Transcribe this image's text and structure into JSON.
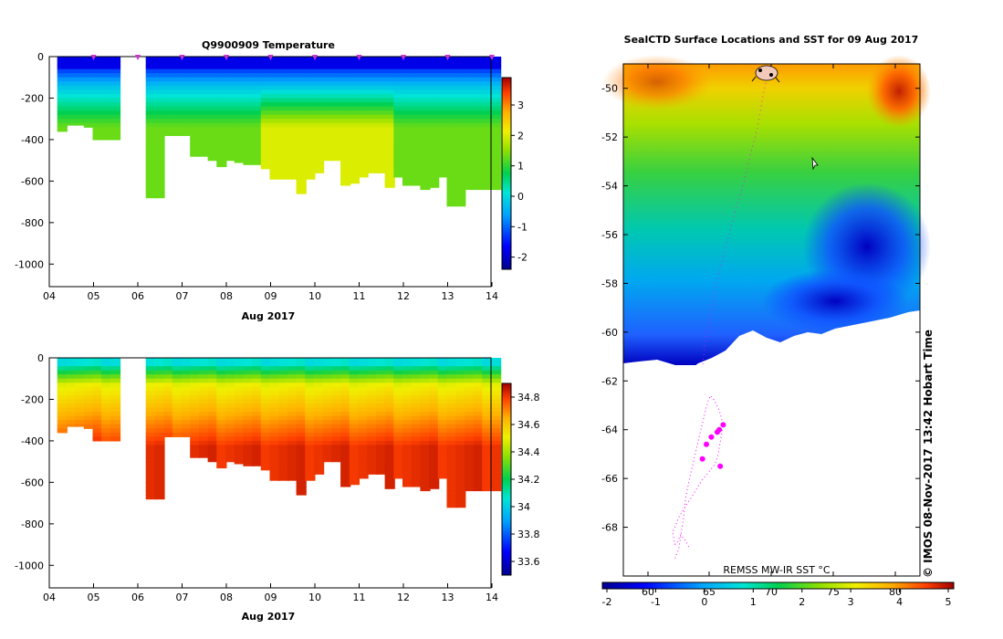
{
  "chart_data": [
    {
      "type": "heatmap",
      "title": "Q9900909  Temperature",
      "xlabel": "Aug 2017",
      "x_ticks": [
        "04",
        "05",
        "06",
        "07",
        "08",
        "09",
        "10",
        "11",
        "12",
        "13",
        "14"
      ],
      "y_ticks": [
        "0",
        "-200",
        "-400",
        "-600",
        "-800",
        "-1000"
      ],
      "ylim": [
        -1100,
        0
      ],
      "colorbar_ticks": [
        "3",
        "2",
        "1",
        "0",
        "-1",
        "-2"
      ],
      "colorbar_range": [
        -2.4,
        3.9
      ],
      "profile_times": [
        4.2,
        4.4,
        4.6,
        4.8,
        5.0,
        5.2,
        5.4,
        6.2,
        6.4,
        6.6,
        6.8,
        7.0,
        7.2,
        7.4,
        7.6,
        7.8,
        8.0,
        8.2,
        8.4,
        8.6,
        8.8,
        9.0,
        9.2,
        9.4,
        9.6,
        9.8,
        10.0,
        10.2,
        10.4,
        10.6,
        10.8,
        11.0,
        11.2,
        11.4,
        11.6,
        11.8,
        12.0,
        12.2,
        12.4,
        12.6,
        12.8,
        13.0,
        13.2,
        13.4,
        13.6,
        13.8,
        14.0
      ],
      "profile_max_depth": [
        360,
        330,
        330,
        340,
        400,
        400,
        400,
        680,
        680,
        380,
        380,
        380,
        480,
        480,
        500,
        530,
        500,
        510,
        520,
        520,
        540,
        590,
        590,
        590,
        660,
        590,
        560,
        500,
        500,
        620,
        610,
        580,
        560,
        560,
        630,
        580,
        620,
        620,
        640,
        630,
        580,
        720,
        720,
        640,
        640,
        640,
        640
      ],
      "surface_markers": [
        "05",
        "06",
        "07",
        "08",
        "09",
        "10",
        "11",
        "12",
        "13",
        "14"
      ]
    },
    {
      "type": "heatmap",
      "title": "",
      "xlabel": "Aug 2017",
      "x_ticks": [
        "04",
        "05",
        "06",
        "07",
        "08",
        "09",
        "10",
        "11",
        "12",
        "13",
        "14"
      ],
      "y_ticks": [
        "0",
        "-200",
        "-400",
        "-600",
        "-800",
        "-1000"
      ],
      "ylim": [
        -1100,
        0
      ],
      "colorbar_ticks": [
        "34.8",
        "34.6",
        "34.4",
        "34.2",
        "34",
        "33.8",
        "33.6"
      ],
      "colorbar_range": [
        33.5,
        34.9
      ]
    },
    {
      "type": "heatmap",
      "title": "SealCTD Surface Locations and SST for 09 Aug 2017",
      "y_ticks": [
        "-50",
        "-52",
        "-54",
        "-56",
        "-58",
        "-60",
        "-62",
        "-64",
        "-66",
        "-68"
      ],
      "ylim": [
        -70,
        -49
      ],
      "top_x_ticks": [
        "60",
        "65",
        "70",
        "75",
        "80"
      ],
      "colorbar_ticks": [
        "-2",
        "-1",
        "0",
        "1",
        "2",
        "3",
        "4",
        "5"
      ],
      "colorbar_range": [
        -2,
        5
      ],
      "source_label": "REMSS MW-IR SST °C",
      "track_points": [
        [
          -67.4,
          -68.8
        ],
        [
          -67.8,
          -68.5
        ],
        [
          -68.2,
          -68.3
        ],
        [
          -68.5,
          -68.6
        ],
        [
          -68.8,
          -68.7
        ],
        [
          -69.0,
          -68.2
        ],
        [
          -68.4,
          -67.6
        ],
        [
          -67.8,
          -67.2
        ],
        [
          -67.0,
          -66.7
        ],
        [
          -66.4,
          -66.3
        ],
        [
          -65.9,
          -66.0
        ],
        [
          -65.5,
          -65.8
        ],
        [
          -65.1,
          -65.6
        ],
        [
          -64.7,
          -65.4
        ],
        [
          -64.4,
          -65.0
        ],
        [
          -64.2,
          -64.5
        ],
        [
          -63.9,
          -63.8
        ],
        [
          -64.3,
          -63.2
        ],
        [
          -64.8,
          -62.8
        ],
        [
          -65.2,
          -62.6
        ],
        [
          -65.5,
          -62.9
        ],
        [
          -65.8,
          -63.4
        ],
        [
          -66.1,
          -63.9
        ],
        [
          -66.5,
          -64.6
        ],
        [
          -66.9,
          -65.3
        ],
        [
          -67.3,
          -66.0
        ],
        [
          -67.7,
          -66.8
        ],
        [
          -67.9,
          -67.6
        ],
        [
          -68.4,
          -68.9
        ],
        [
          -68.8,
          -69.3
        ]
      ],
      "highlight_points": [
        [
          -64.3,
          -64.0
        ],
        [
          -64.5,
          -64.1
        ],
        [
          -65.1,
          -64.3
        ],
        [
          -65.6,
          -64.6
        ],
        [
          -66.0,
          -65.2
        ],
        [
          -64.2,
          -65.5
        ],
        [
          -63.9,
          -63.8
        ]
      ]
    }
  ],
  "side_label": "© IMOS 08-Nov-2017 13:42 Hobart Time",
  "colors": {
    "track": "#ff00ff",
    "ice_mask": "#ffffff",
    "marker": "#cc33cc"
  }
}
